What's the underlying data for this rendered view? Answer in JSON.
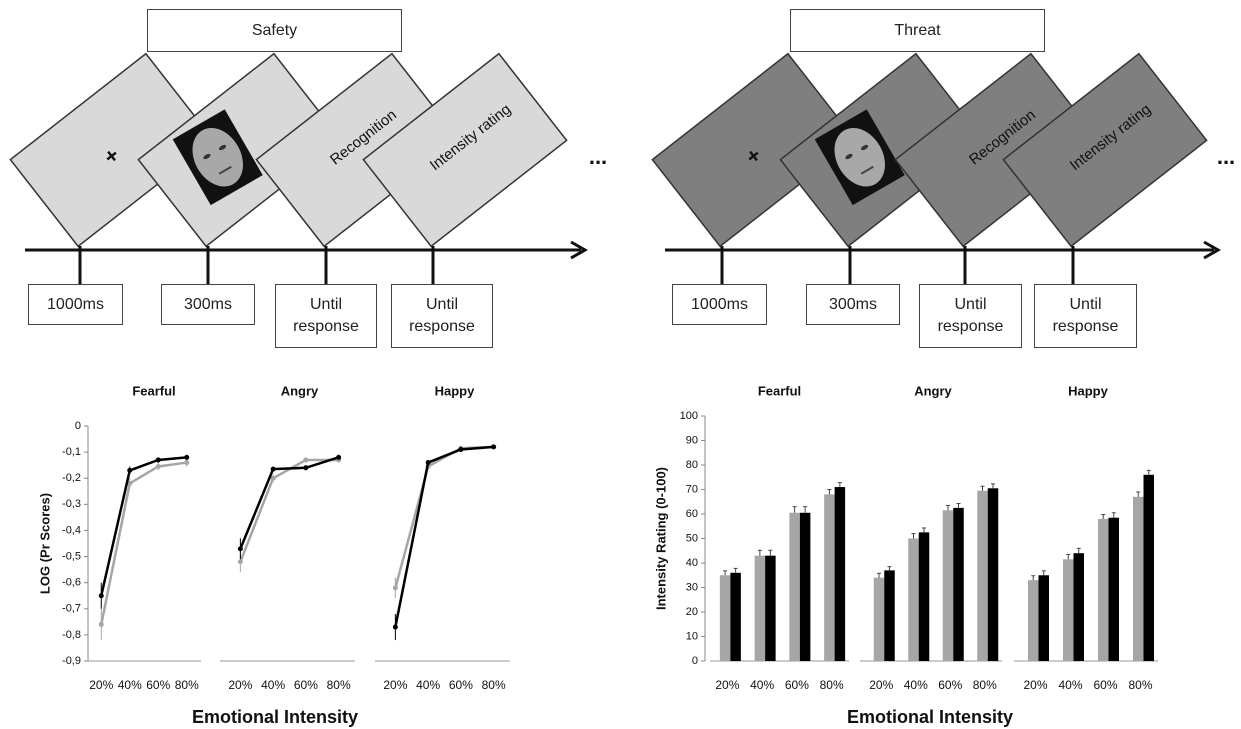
{
  "diagrams": [
    {
      "title": "Safety",
      "fixation": "+",
      "screens": [
        "Recognition",
        "Intensity rating"
      ],
      "durations": [
        "1000ms",
        "300ms",
        "Until response",
        "Until response"
      ],
      "continuation": "..."
    },
    {
      "title": "Threat",
      "fixation": "+",
      "screens": [
        "Recognition",
        "Intensity rating"
      ],
      "durations": [
        "1000ms",
        "300ms",
        "Until response",
        "Until response"
      ],
      "continuation": "..."
    }
  ],
  "chart_data": [
    {
      "type": "line",
      "ylabel": "LOG (Pr Scores)",
      "xlabel": "Emotional Intensity",
      "ylim": [
        -0.9,
        0
      ],
      "yticks": [
        0,
        {
          "value": -0.1,
          "label": "-0,1"
        },
        {
          "value": -0.2,
          "label": "-0,2"
        },
        {
          "value": -0.3,
          "label": "-0,3"
        },
        {
          "value": -0.4,
          "label": "-0,4"
        },
        {
          "value": -0.5,
          "label": "-0,5"
        },
        {
          "value": -0.6,
          "label": "-0,6"
        },
        {
          "value": -0.7,
          "label": "-0,7"
        },
        {
          "value": -0.8,
          "label": "-0,8"
        },
        {
          "value": -0.9,
          "label": "-0,9"
        }
      ],
      "panels": [
        {
          "title": "Fearful",
          "categories": [
            "20%",
            "40%",
            "60%",
            "80%"
          ],
          "series": [
            {
              "color": "#a6a6a6",
              "values": [
                -0.76,
                -0.22,
                -0.155,
                -0.14
              ],
              "errors": [
                0.06,
                0.02,
                0.015,
                0.015
              ]
            },
            {
              "color": "#000000",
              "values": [
                -0.65,
                -0.17,
                -0.13,
                -0.12
              ],
              "errors": [
                0.05,
                0.015,
                0.01,
                0.01
              ]
            }
          ]
        },
        {
          "title": "Angry",
          "categories": [
            "20%",
            "40%",
            "60%",
            "80%"
          ],
          "series": [
            {
              "color": "#a6a6a6",
              "values": [
                -0.52,
                -0.2,
                -0.13,
                -0.13
              ],
              "errors": [
                0.04,
                0.015,
                0.01,
                0.01
              ]
            },
            {
              "color": "#000000",
              "values": [
                -0.47,
                -0.165,
                -0.16,
                -0.12
              ],
              "errors": [
                0.04,
                0.01,
                0.01,
                0.01
              ]
            }
          ]
        },
        {
          "title": "Happy",
          "categories": [
            "20%",
            "40%",
            "60%",
            "80%"
          ],
          "series": [
            {
              "color": "#a6a6a6",
              "values": [
                -0.62,
                -0.155,
                -0.085,
                -0.08
              ],
              "errors": [
                0.04,
                0.015,
                0.01,
                0.01
              ]
            },
            {
              "color": "#000000",
              "values": [
                -0.77,
                -0.14,
                -0.09,
                -0.08
              ],
              "errors": [
                0.05,
                0.01,
                0.01,
                0.008
              ]
            }
          ]
        }
      ]
    },
    {
      "type": "bar",
      "ylabel": "Intensity Rating (0-100)",
      "xlabel": "Emotional Intensity",
      "ylim": [
        0,
        100
      ],
      "yticks": [
        0,
        10,
        20,
        30,
        40,
        50,
        60,
        70,
        80,
        90,
        100
      ],
      "panels": [
        {
          "title": "Fearful",
          "categories": [
            "20%",
            "40%",
            "60%",
            "80%"
          ],
          "series": [
            {
              "color": "#a6a6a6",
              "values": [
                35,
                43,
                60.5,
                68
              ],
              "errors": [
                1.8,
                2.2,
                2.5,
                2
              ]
            },
            {
              "color": "#000000",
              "values": [
                36,
                43,
                60.5,
                71
              ],
              "errors": [
                1.8,
                2.2,
                2.5,
                1.8
              ]
            }
          ]
        },
        {
          "title": "Angry",
          "categories": [
            "20%",
            "40%",
            "60%",
            "80%"
          ],
          "series": [
            {
              "color": "#a6a6a6",
              "values": [
                34,
                50,
                61.5,
                69.5
              ],
              "errors": [
                1.8,
                2,
                2,
                1.8
              ]
            },
            {
              "color": "#000000",
              "values": [
                37,
                52.5,
                62.5,
                70.5
              ],
              "errors": [
                1.5,
                1.8,
                1.8,
                1.8
              ]
            }
          ]
        },
        {
          "title": "Happy",
          "categories": [
            "20%",
            "40%",
            "60%",
            "80%"
          ],
          "series": [
            {
              "color": "#a6a6a6",
              "values": [
                33,
                41.5,
                58,
                67
              ],
              "errors": [
                1.8,
                2,
                1.8,
                2
              ]
            },
            {
              "color": "#000000",
              "values": [
                35,
                44,
                58.5,
                76
              ],
              "errors": [
                1.8,
                2,
                2,
                1.8
              ]
            }
          ]
        }
      ]
    }
  ]
}
